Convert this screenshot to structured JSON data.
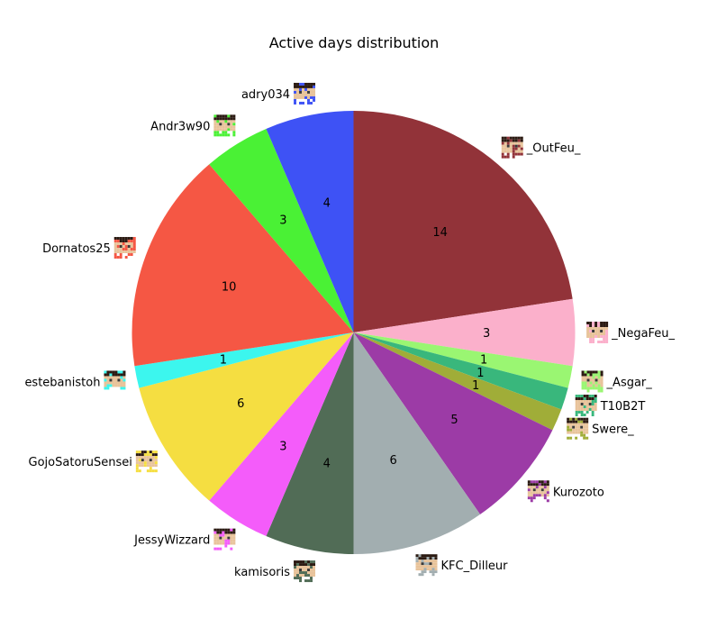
{
  "chart_data": {
    "type": "pie",
    "title": "Active days distribution",
    "start_angle_deg": 90,
    "direction": "clockwise",
    "slices": [
      {
        "label": "_OutFeu_",
        "value": 14,
        "color": "#923339",
        "avatar_icon": "player-avatar-icon"
      },
      {
        "label": "_NegaFeu_",
        "value": 3,
        "color": "#fbb0cb",
        "avatar_icon": "player-avatar-icon"
      },
      {
        "label": "_Asgar_",
        "value": 1,
        "color": "#9af672",
        "avatar_icon": "player-avatar-icon"
      },
      {
        "label": "T10B2T",
        "value": 1,
        "color": "#39b77c",
        "avatar_icon": "player-avatar-icon"
      },
      {
        "label": "Swere_",
        "value": 1,
        "color": "#a0ad38",
        "avatar_icon": "player-avatar-icon"
      },
      {
        "label": "Kurozoto",
        "value": 5,
        "color": "#9c3ba6",
        "avatar_icon": "player-avatar-icon"
      },
      {
        "label": "KFC_Dilleur",
        "value": 6,
        "color": "#a2aeb0",
        "avatar_icon": "player-avatar-icon"
      },
      {
        "label": "kamisoris",
        "value": 4,
        "color": "#516c56",
        "avatar_icon": "player-avatar-icon"
      },
      {
        "label": "JessyWizzard",
        "value": 3,
        "color": "#f45cfa",
        "avatar_icon": "player-avatar-icon"
      },
      {
        "label": "GojoSatoruSensei",
        "value": 6,
        "color": "#f5de41",
        "avatar_icon": "player-avatar-icon"
      },
      {
        "label": "estebanistoh",
        "value": 1,
        "color": "#3cf6ee",
        "avatar_icon": "player-avatar-icon"
      },
      {
        "label": "Dornatos25",
        "value": 10,
        "color": "#f55744",
        "avatar_icon": "player-avatar-icon"
      },
      {
        "label": "Andr3w90",
        "value": 3,
        "color": "#4af135",
        "avatar_icon": "player-avatar-icon"
      },
      {
        "label": "adry034",
        "value": 4,
        "color": "#3e52f5",
        "avatar_icon": "player-avatar-icon"
      }
    ]
  }
}
